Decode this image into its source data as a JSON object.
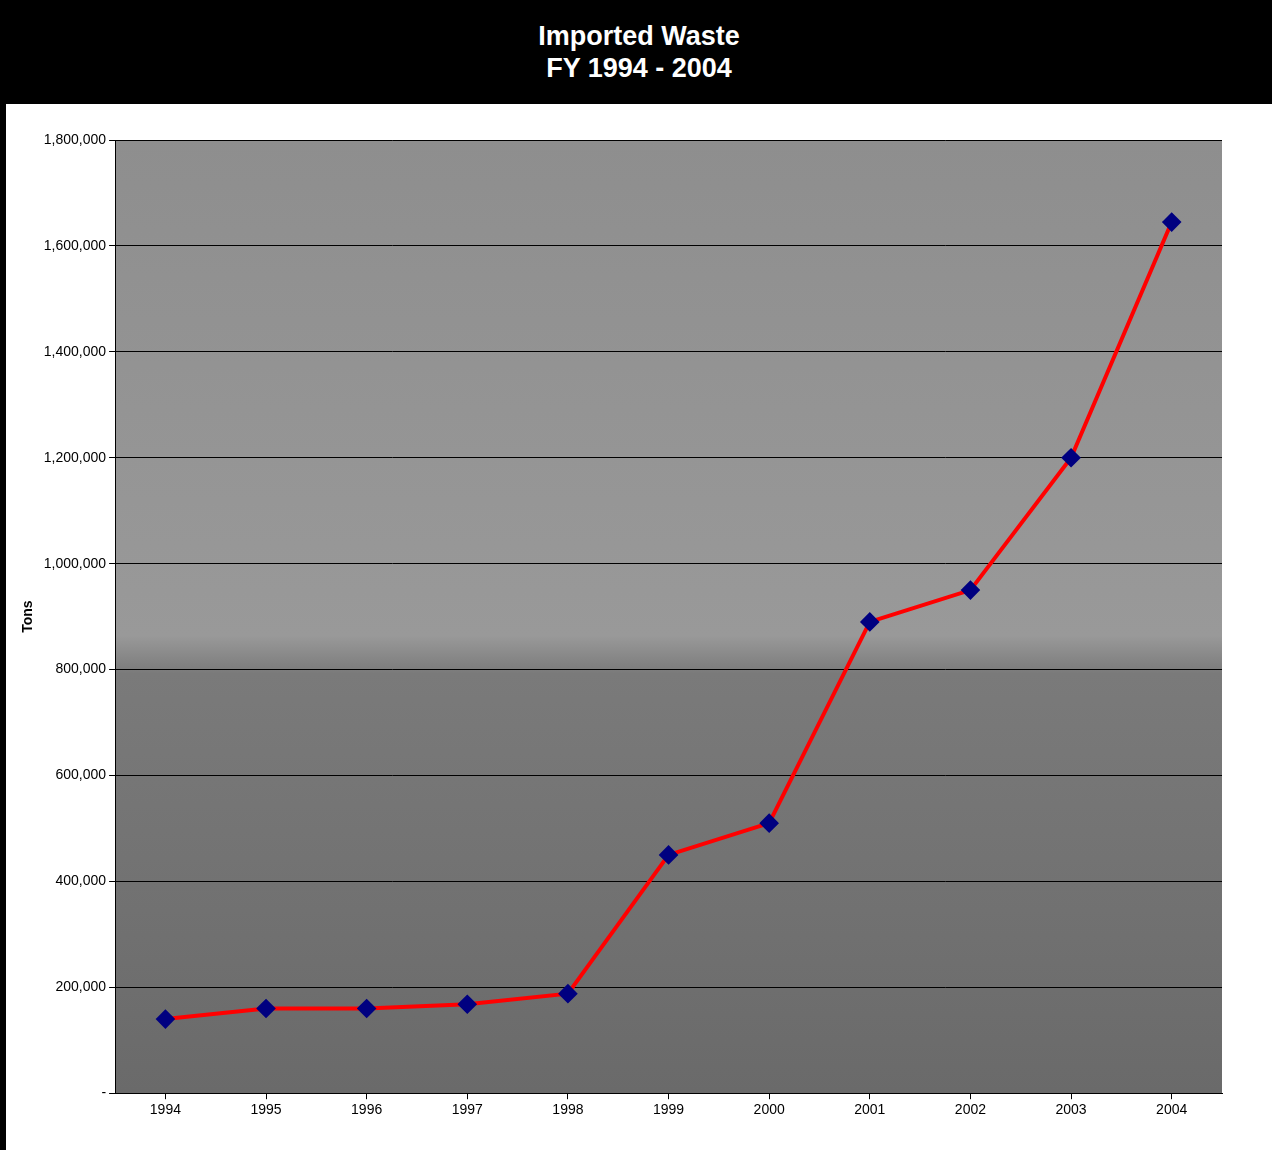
{
  "chart_data": {
    "type": "line",
    "title": "Imported Waste",
    "subtitle": "FY 1994 - 2004",
    "y_label": "Tons",
    "categories": [
      "1994",
      "1995",
      "1996",
      "1997",
      "1998",
      "1999",
      "2000",
      "2001",
      "2002",
      "2003",
      "2004"
    ],
    "values": [
      140000,
      160000,
      160000,
      168000,
      188000,
      450000,
      510000,
      890000,
      950000,
      1200000,
      1645000
    ],
    "color": "#ff0000",
    "marker": "diamond",
    "ylim": [
      0,
      1800000
    ],
    "yticks": [
      {
        "value": 0,
        "label": "-"
      },
      {
        "value": 200000,
        "label": "200,000"
      },
      {
        "value": 400000,
        "label": "400,000"
      },
      {
        "value": 600000,
        "label": "600,000"
      },
      {
        "value": 800000,
        "label": "800,000"
      },
      {
        "value": 1000000,
        "label": "1,000,000"
      },
      {
        "value": 1200000,
        "label": "1,200,000"
      },
      {
        "value": 1400000,
        "label": "1,400,000"
      },
      {
        "value": 1600000,
        "label": "1,600,000"
      },
      {
        "value": 1800000,
        "label": "1,800,000"
      }
    ],
    "grid": true
  }
}
